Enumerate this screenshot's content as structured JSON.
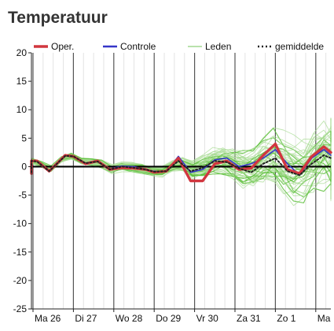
{
  "header": {
    "title": "Temperatuur"
  },
  "chart_data": {
    "type": "line",
    "title": "",
    "xlabel": "",
    "ylabel": "",
    "ylim": [
      -25,
      20
    ],
    "y_ticks": [
      20,
      15,
      10,
      5,
      0,
      -5,
      -10,
      -15,
      -20,
      -25
    ],
    "x_range_days": [
      0,
      8.33
    ],
    "day_labels": [
      "Ma 26",
      "Di 27",
      "Wo 28",
      "Do 29",
      "Vr 30",
      "Za 31",
      "Zo 1",
      "Ma"
    ],
    "day_labels_position": [
      0,
      1,
      2,
      3,
      4,
      5,
      6,
      7
    ],
    "grid": "vertical lines every 6 hours, darker line at day boundaries",
    "zero_line": true,
    "legend": {
      "position": "top",
      "entries": [
        {
          "label": "Oper.",
          "color": "#d1363f",
          "style": "thick-line"
        },
        {
          "label": "Controle",
          "color": "#3535c8",
          "style": "line"
        },
        {
          "label": "Leden",
          "color": "#8fd17a",
          "style": "thin-line"
        },
        {
          "label": "gemiddelde",
          "color": "#222222",
          "style": "dotted-line"
        }
      ]
    },
    "colors": {
      "oper": "#d1363f",
      "controle": "#3535c8",
      "leden": "#5cbf3a",
      "leden_light": "#a9dc95",
      "gemiddelde": "#222222",
      "zero_line": "#000000",
      "grid": "#e3e3e3",
      "day_line": "#555555"
    },
    "series": [
      {
        "name": "Oper.",
        "x": [
          -0.3,
          -0.1,
          0.1,
          0.4,
          0.8,
          1.0,
          1.3,
          1.6,
          1.9,
          2.2,
          2.5,
          2.8,
          3.0,
          3.3,
          3.6,
          3.9,
          4.2,
          4.5,
          4.8,
          5.1,
          5.4,
          5.7,
          6.0,
          6.3,
          6.6,
          6.9,
          7.2,
          7.5
        ],
        "values": [
          -1.2,
          1.0,
          1.0,
          -0.8,
          2.0,
          1.8,
          0.5,
          1.0,
          -0.5,
          -0.2,
          -0.3,
          -0.5,
          -1.0,
          -0.8,
          1.5,
          -2.5,
          -2.5,
          0.5,
          1.0,
          -0.5,
          -0.3,
          2.0,
          4.0,
          -0.5,
          -1.2,
          1.8,
          3.5,
          2.5
        ]
      },
      {
        "name": "Controle",
        "x": [
          -0.3,
          -0.1,
          0.1,
          0.4,
          0.8,
          1.0,
          1.3,
          1.6,
          1.9,
          2.2,
          2.5,
          2.8,
          3.0,
          3.3,
          3.6,
          3.9,
          4.2,
          4.5,
          4.8,
          5.1,
          5.4,
          5.7,
          6.0,
          6.3,
          6.6,
          6.9,
          7.2,
          7.5
        ],
        "values": [
          -1.0,
          1.1,
          0.9,
          -0.7,
          2.0,
          1.9,
          0.6,
          1.0,
          -0.4,
          0.1,
          0.0,
          -0.6,
          -0.8,
          -0.9,
          1.8,
          -1.0,
          -0.5,
          1.2,
          1.5,
          0.0,
          0.5,
          1.5,
          3.0,
          0.5,
          -1.5,
          1.5,
          3.0,
          2.0
        ]
      },
      {
        "name": "gemiddelde",
        "x": [
          -0.3,
          -0.1,
          0.1,
          0.4,
          0.8,
          1.0,
          1.3,
          1.6,
          1.9,
          2.2,
          2.5,
          2.8,
          3.0,
          3.3,
          3.6,
          3.9,
          4.2,
          4.5,
          4.8,
          5.1,
          5.4,
          5.7,
          6.0,
          6.3,
          6.6,
          6.9,
          7.2,
          7.5
        ],
        "values": [
          -1.0,
          1.0,
          0.9,
          -0.8,
          1.9,
          1.8,
          0.6,
          0.9,
          -0.5,
          0.0,
          -0.2,
          -0.5,
          -0.9,
          -0.8,
          1.0,
          -0.8,
          -0.2,
          1.0,
          0.8,
          -0.3,
          -1.0,
          0.5,
          1.5,
          -0.8,
          -1.5,
          0.5,
          2.0,
          1.5
        ]
      }
    ]
  }
}
